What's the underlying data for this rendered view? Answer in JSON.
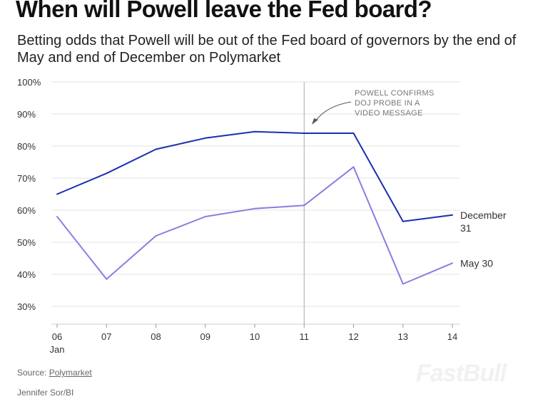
{
  "header": {
    "title": "When will Powell leave the Fed board?",
    "subtitle": "Betting odds that Powell will be out of the Fed board of governors by the end of May and end of December on Polymarket"
  },
  "chart_data": {
    "type": "line",
    "x": [
      "06",
      "07",
      "08",
      "09",
      "10",
      "11",
      "12",
      "13",
      "14"
    ],
    "x_sublabel": "Jan",
    "ylim": [
      25,
      100
    ],
    "yticks": [
      30,
      40,
      50,
      60,
      70,
      80,
      90,
      100
    ],
    "ytick_labels": [
      "30%",
      "40%",
      "50%",
      "60%",
      "70%",
      "80%",
      "90%",
      "100%"
    ],
    "grid": true,
    "series": [
      {
        "name": "December 31",
        "label_lines": [
          "December",
          "31"
        ],
        "color": "#1a2fb0",
        "values": [
          65,
          71.5,
          79,
          82.5,
          84.5,
          84,
          84,
          56.5,
          58.5
        ]
      },
      {
        "name": "May 30",
        "label_lines": [
          "May 30"
        ],
        "color": "#8f7ae0",
        "values": [
          58,
          38.5,
          52,
          58,
          60.5,
          61.5,
          73.5,
          37,
          43.5
        ]
      }
    ],
    "annotation": {
      "x": "11",
      "lines": [
        "POWELL CONFIRMS",
        "DOJ PROBE IN A",
        "VIDEO MESSAGE"
      ]
    }
  },
  "footer": {
    "source_prefix": "Source: ",
    "source_link": "Polymarket",
    "credit": "Jennifer Sor/BI"
  },
  "watermark": "FastBull"
}
